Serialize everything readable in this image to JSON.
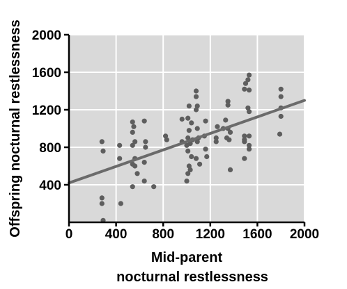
{
  "chart_data": {
    "type": "scatter",
    "title": "",
    "xlabel": [
      "Mid-parent",
      "nocturnal restlessness"
    ],
    "ylabel": "Offspring nocturnal restlessness",
    "xlim": [
      0,
      2000
    ],
    "ylim": [
      0,
      2000
    ],
    "xticks": [
      0,
      400,
      800,
      1200,
      1600,
      2000
    ],
    "yticks": [
      400,
      800,
      1200,
      1600,
      2000
    ],
    "grid": true,
    "colors": {
      "plot_bg": "#d9d9d9",
      "grid": "#ffffff",
      "marker": "#5e5e5e",
      "line": "#6b6b6b",
      "axis": "#000000"
    },
    "trendline": {
      "x": [
        0,
        2000
      ],
      "y": [
        420,
        1300
      ]
    },
    "points": [
      [
        280,
        860
      ],
      [
        290,
        760
      ],
      [
        280,
        260
      ],
      [
        280,
        200
      ],
      [
        290,
        20
      ],
      [
        430,
        820
      ],
      [
        430,
        680
      ],
      [
        440,
        200
      ],
      [
        540,
        1070
      ],
      [
        550,
        1020
      ],
      [
        540,
        960
      ],
      [
        560,
        860
      ],
      [
        540,
        820
      ],
      [
        560,
        680
      ],
      [
        540,
        620
      ],
      [
        560,
        600
      ],
      [
        580,
        520
      ],
      [
        540,
        380
      ],
      [
        640,
        1080
      ],
      [
        650,
        860
      ],
      [
        650,
        800
      ],
      [
        640,
        640
      ],
      [
        640,
        440
      ],
      [
        720,
        380
      ],
      [
        820,
        920
      ],
      [
        830,
        880
      ],
      [
        960,
        1100
      ],
      [
        960,
        860
      ],
      [
        1020,
        1240
      ],
      [
        1010,
        1110
      ],
      [
        1040,
        1060
      ],
      [
        1020,
        980
      ],
      [
        1010,
        900
      ],
      [
        1050,
        880
      ],
      [
        1030,
        840
      ],
      [
        1000,
        820
      ],
      [
        1010,
        760
      ],
      [
        1040,
        700
      ],
      [
        1020,
        600
      ],
      [
        1030,
        560
      ],
      [
        1010,
        520
      ],
      [
        1000,
        440
      ],
      [
        1080,
        1400
      ],
      [
        1080,
        1340
      ],
      [
        1090,
        1240
      ],
      [
        1080,
        1200
      ],
      [
        1090,
        1000
      ],
      [
        1100,
        900
      ],
      [
        1090,
        860
      ],
      [
        1080,
        680
      ],
      [
        1110,
        620
      ],
      [
        1150,
        920
      ],
      [
        1160,
        1080
      ],
      [
        1160,
        780
      ],
      [
        1170,
        700
      ],
      [
        1260,
        1020
      ],
      [
        1250,
        900
      ],
      [
        1250,
        860
      ],
      [
        1310,
        1000
      ],
      [
        1350,
        1290
      ],
      [
        1350,
        1250
      ],
      [
        1330,
        1090
      ],
      [
        1350,
        1000
      ],
      [
        1370,
        960
      ],
      [
        1340,
        900
      ],
      [
        1360,
        880
      ],
      [
        1370,
        560
      ],
      [
        1500,
        1480
      ],
      [
        1490,
        1420
      ],
      [
        1530,
        1410
      ],
      [
        1530,
        1570
      ],
      [
        1520,
        1520
      ],
      [
        1520,
        1220
      ],
      [
        1530,
        1180
      ],
      [
        1490,
        920
      ],
      [
        1530,
        920
      ],
      [
        1490,
        880
      ],
      [
        1490,
        860
      ],
      [
        1530,
        820
      ],
      [
        1530,
        780
      ],
      [
        1490,
        680
      ],
      [
        1800,
        1420
      ],
      [
        1800,
        1340
      ],
      [
        1800,
        1220
      ],
      [
        1800,
        1130
      ],
      [
        1790,
        940
      ]
    ]
  }
}
